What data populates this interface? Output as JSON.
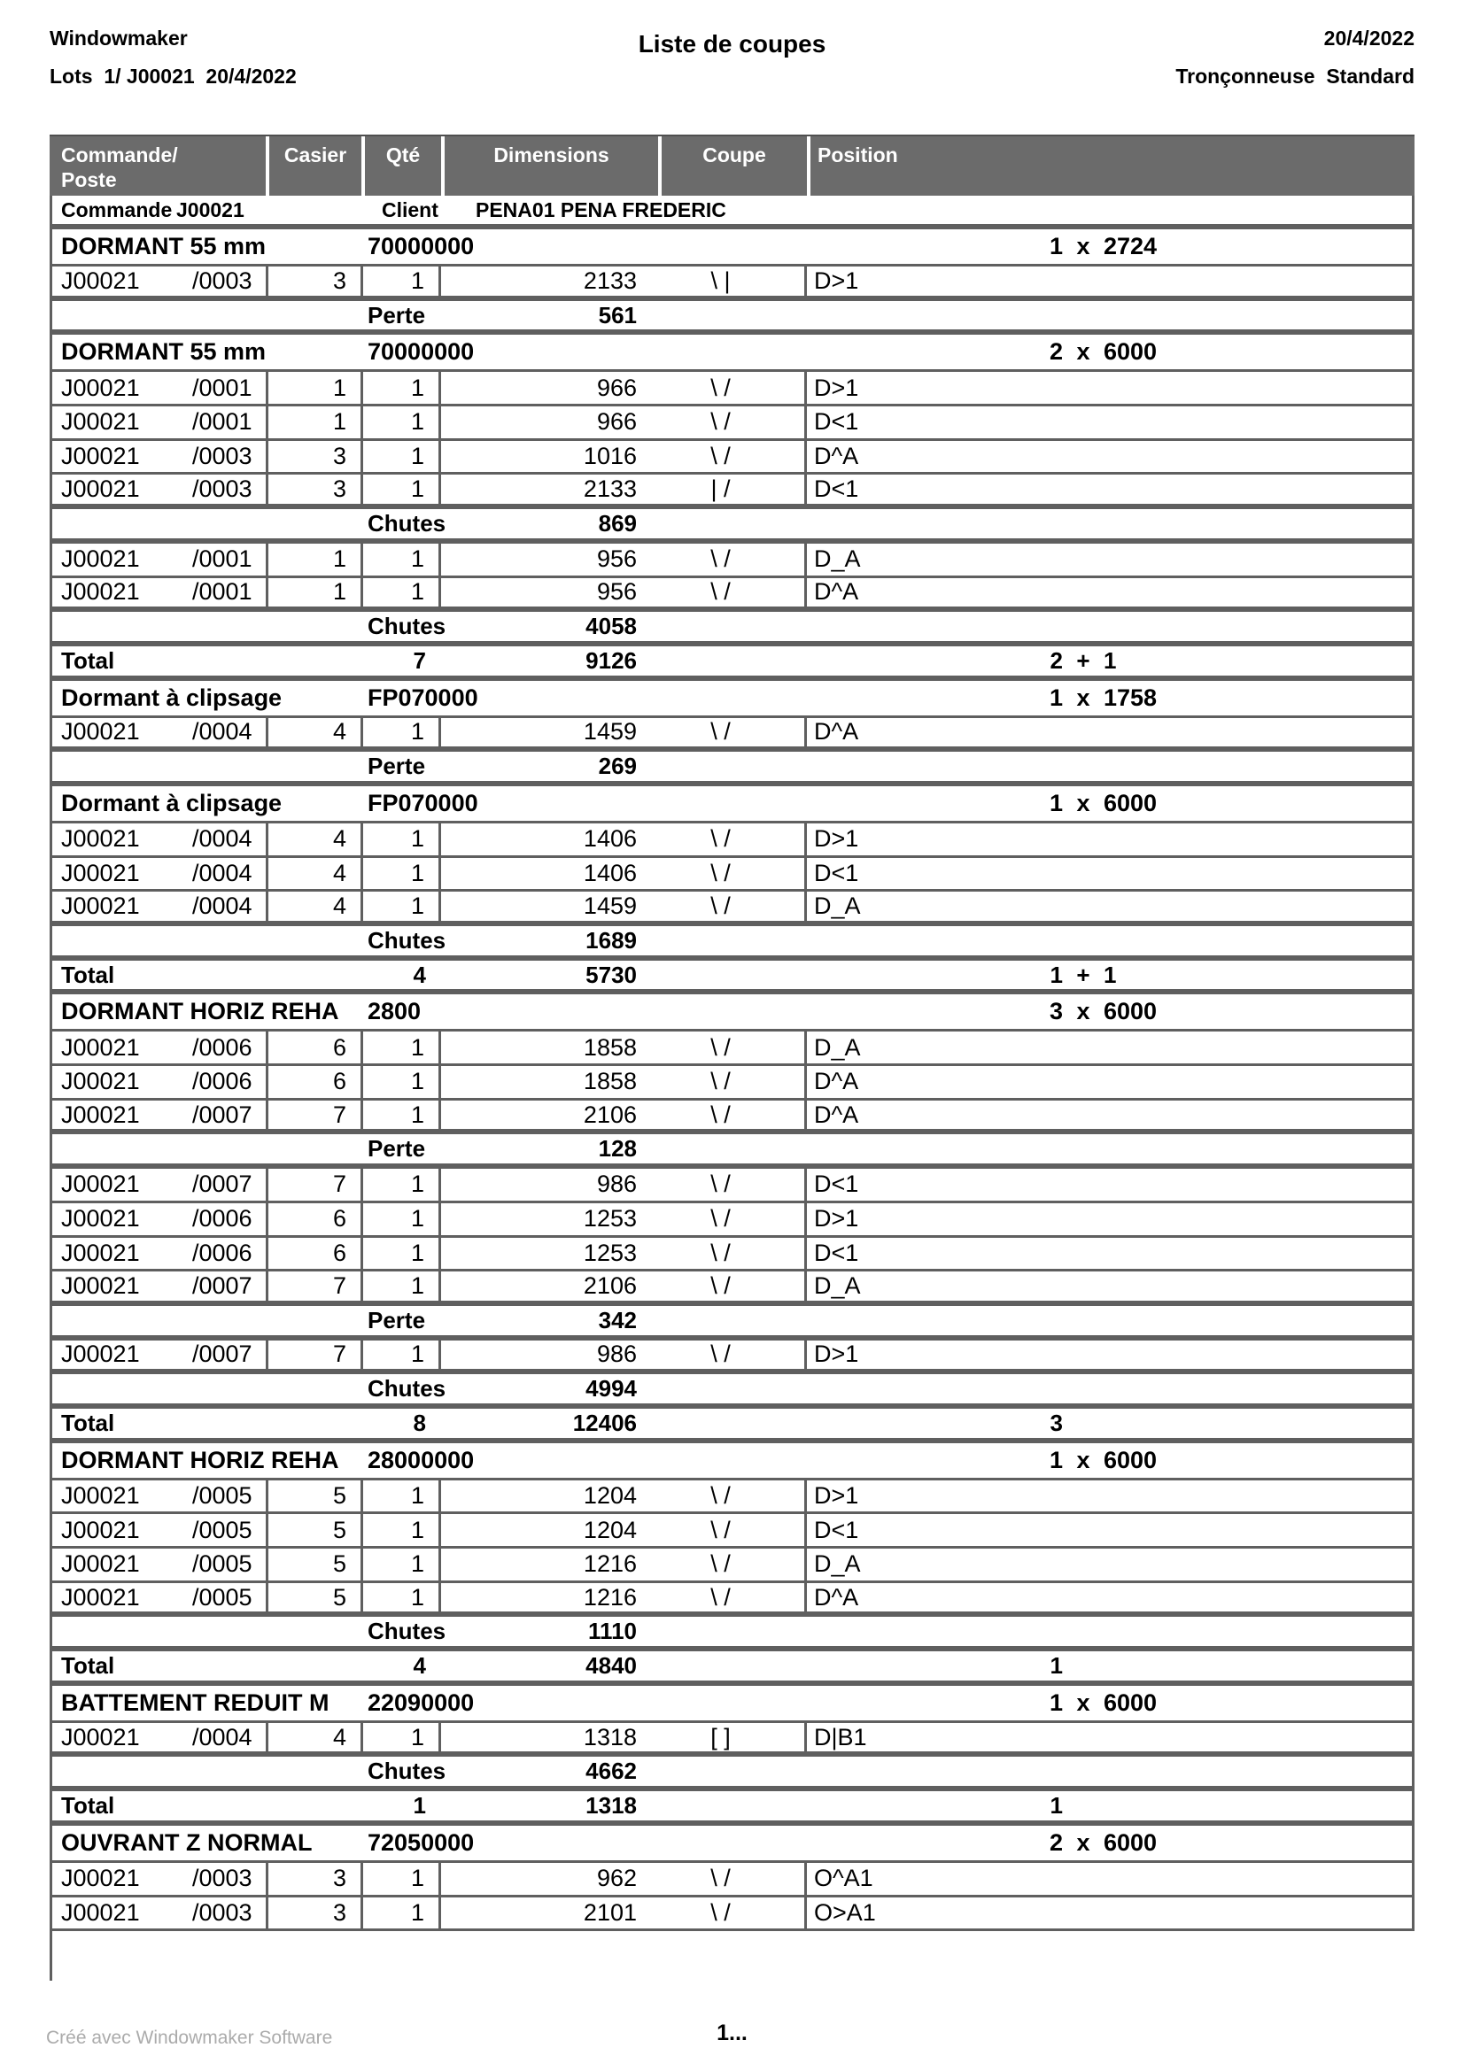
{
  "header": {
    "app_title": "Windowmaker",
    "lots_line": "Lots  1/ J00021  20/4/2022",
    "title": "Liste de coupes",
    "date": "20/4/2022",
    "machine": "Tronçonneuse  Standard"
  },
  "colors": {
    "header_bg": "#6b6b6b",
    "table_border": "#5f5f5f",
    "credit_gray": "#ababab"
  },
  "table": {
    "header": {
      "col0_line1": "Commande/",
      "col0_line2": "Poste",
      "col1": "Casier",
      "col2": "Qté",
      "col3": "Dimensions",
      "col4": "Coupe",
      "col5": "Position"
    },
    "rows": [
      {
        "type": "commande",
        "border": "thick",
        "label": "Commande",
        "order": "J00021",
        "client_label": "Client",
        "client": "PENA01 PENA FREDERIC"
      },
      {
        "type": "group",
        "border": "thin",
        "name": "DORMANT 55 mm",
        "code": "70000000",
        "bar_count": "1",
        "bar_sep": "x",
        "bar_len": "2724"
      },
      {
        "type": "data",
        "border": "thick",
        "order": "J00021",
        "poste": "/0003",
        "casier": "3",
        "qty": "1",
        "dim": "2133",
        "coupe": "\\ |",
        "position": "D>1"
      },
      {
        "type": "waste",
        "border": "thick",
        "label": "Perte",
        "value": "561"
      },
      {
        "type": "group",
        "border": "thin",
        "name": "DORMANT 55 mm",
        "code": "70000000",
        "bar_count": "2",
        "bar_sep": "x",
        "bar_len": "6000"
      },
      {
        "type": "data",
        "border": "thin",
        "order": "J00021",
        "poste": "/0001",
        "casier": "1",
        "qty": "1",
        "dim": "966",
        "coupe": "\\ /",
        "position": "D>1"
      },
      {
        "type": "data",
        "border": "thin",
        "order": "J00021",
        "poste": "/0001",
        "casier": "1",
        "qty": "1",
        "dim": "966",
        "coupe": "\\ /",
        "position": "D<1"
      },
      {
        "type": "data",
        "border": "thin",
        "order": "J00021",
        "poste": "/0003",
        "casier": "3",
        "qty": "1",
        "dim": "1016",
        "coupe": "\\ /",
        "position": "D^A"
      },
      {
        "type": "data",
        "border": "thick",
        "order": "J00021",
        "poste": "/0003",
        "casier": "3",
        "qty": "1",
        "dim": "2133",
        "coupe": "| /",
        "position": "D<1"
      },
      {
        "type": "waste",
        "border": "thick",
        "label": "Chutes",
        "value": "869"
      },
      {
        "type": "data",
        "border": "thin",
        "order": "J00021",
        "poste": "/0001",
        "casier": "1",
        "qty": "1",
        "dim": "956",
        "coupe": "\\ /",
        "position": "D_A"
      },
      {
        "type": "data",
        "border": "thick",
        "order": "J00021",
        "poste": "/0001",
        "casier": "1",
        "qty": "1",
        "dim": "956",
        "coupe": "\\ /",
        "position": "D^A"
      },
      {
        "type": "waste",
        "border": "thick",
        "label": "Chutes",
        "value": "4058"
      },
      {
        "type": "total",
        "border": "thick",
        "label": "Total",
        "qty": "7",
        "len": "9126",
        "bar_count": "2",
        "bar_sep": "+",
        "bar_len": "1"
      },
      {
        "type": "group",
        "border": "thin",
        "name": "Dormant à clipsage",
        "code": "FP070000",
        "bar_count": "1",
        "bar_sep": "x",
        "bar_len": "1758"
      },
      {
        "type": "data",
        "border": "thick",
        "order": "J00021",
        "poste": "/0004",
        "casier": "4",
        "qty": "1",
        "dim": "1459",
        "coupe": "\\ /",
        "position": "D^A"
      },
      {
        "type": "waste",
        "border": "thick",
        "label": "Perte",
        "value": "269"
      },
      {
        "type": "group",
        "border": "thin",
        "name": "Dormant à clipsage",
        "code": "FP070000",
        "bar_count": "1",
        "bar_sep": "x",
        "bar_len": "6000"
      },
      {
        "type": "data",
        "border": "thin",
        "order": "J00021",
        "poste": "/0004",
        "casier": "4",
        "qty": "1",
        "dim": "1406",
        "coupe": "\\ /",
        "position": "D>1"
      },
      {
        "type": "data",
        "border": "thin",
        "order": "J00021",
        "poste": "/0004",
        "casier": "4",
        "qty": "1",
        "dim": "1406",
        "coupe": "\\ /",
        "position": "D<1"
      },
      {
        "type": "data",
        "border": "thick",
        "order": "J00021",
        "poste": "/0004",
        "casier": "4",
        "qty": "1",
        "dim": "1459",
        "coupe": "\\ /",
        "position": "D_A"
      },
      {
        "type": "waste",
        "border": "thick",
        "label": "Chutes",
        "value": "1689"
      },
      {
        "type": "total",
        "border": "thick",
        "label": "Total",
        "qty": "4",
        "len": "5730",
        "bar_count": "1",
        "bar_sep": "+",
        "bar_len": "1"
      },
      {
        "type": "group",
        "border": "thin",
        "name": "DORMANT HORIZ REHA",
        "code": "2800",
        "bar_count": "3",
        "bar_sep": "x",
        "bar_len": "6000"
      },
      {
        "type": "data",
        "border": "thin",
        "order": "J00021",
        "poste": "/0006",
        "casier": "6",
        "qty": "1",
        "dim": "1858",
        "coupe": "\\ /",
        "position": "D_A"
      },
      {
        "type": "data",
        "border": "thin",
        "order": "J00021",
        "poste": "/0006",
        "casier": "6",
        "qty": "1",
        "dim": "1858",
        "coupe": "\\ /",
        "position": "D^A"
      },
      {
        "type": "data",
        "border": "thick",
        "order": "J00021",
        "poste": "/0007",
        "casier": "7",
        "qty": "1",
        "dim": "2106",
        "coupe": "\\ /",
        "position": "D^A"
      },
      {
        "type": "waste",
        "border": "thick",
        "label": "Perte",
        "value": "128"
      },
      {
        "type": "data",
        "border": "thin",
        "order": "J00021",
        "poste": "/0007",
        "casier": "7",
        "qty": "1",
        "dim": "986",
        "coupe": "\\ /",
        "position": "D<1"
      },
      {
        "type": "data",
        "border": "thin",
        "order": "J00021",
        "poste": "/0006",
        "casier": "6",
        "qty": "1",
        "dim": "1253",
        "coupe": "\\ /",
        "position": "D>1"
      },
      {
        "type": "data",
        "border": "thin",
        "order": "J00021",
        "poste": "/0006",
        "casier": "6",
        "qty": "1",
        "dim": "1253",
        "coupe": "\\ /",
        "position": "D<1"
      },
      {
        "type": "data",
        "border": "thick",
        "order": "J00021",
        "poste": "/0007",
        "casier": "7",
        "qty": "1",
        "dim": "2106",
        "coupe": "\\ /",
        "position": "D_A"
      },
      {
        "type": "waste",
        "border": "thick",
        "label": "Perte",
        "value": "342"
      },
      {
        "type": "data",
        "border": "thick",
        "order": "J00021",
        "poste": "/0007",
        "casier": "7",
        "qty": "1",
        "dim": "986",
        "coupe": "\\ /",
        "position": "D>1"
      },
      {
        "type": "waste",
        "border": "thick",
        "label": "Chutes",
        "value": "4994"
      },
      {
        "type": "total",
        "border": "thick",
        "label": "Total",
        "qty": "8",
        "len": "12406",
        "bar_count": "3",
        "bar_sep": "",
        "bar_len": ""
      },
      {
        "type": "group",
        "border": "thin",
        "name": "DORMANT HORIZ REHA",
        "code": "28000000",
        "bar_count": "1",
        "bar_sep": "x",
        "bar_len": "6000"
      },
      {
        "type": "data",
        "border": "thin",
        "order": "J00021",
        "poste": "/0005",
        "casier": "5",
        "qty": "1",
        "dim": "1204",
        "coupe": "\\ /",
        "position": "D>1"
      },
      {
        "type": "data",
        "border": "thin",
        "order": "J00021",
        "poste": "/0005",
        "casier": "5",
        "qty": "1",
        "dim": "1204",
        "coupe": "\\ /",
        "position": "D<1"
      },
      {
        "type": "data",
        "border": "thin",
        "order": "J00021",
        "poste": "/0005",
        "casier": "5",
        "qty": "1",
        "dim": "1216",
        "coupe": "\\ /",
        "position": "D_A"
      },
      {
        "type": "data",
        "border": "thick",
        "order": "J00021",
        "poste": "/0005",
        "casier": "5",
        "qty": "1",
        "dim": "1216",
        "coupe": "\\ /",
        "position": "D^A"
      },
      {
        "type": "waste",
        "border": "thick",
        "label": "Chutes",
        "value": "1110"
      },
      {
        "type": "total",
        "border": "thick",
        "label": "Total",
        "qty": "4",
        "len": "4840",
        "bar_count": "1",
        "bar_sep": "",
        "bar_len": ""
      },
      {
        "type": "group",
        "border": "thin",
        "name": "BATTEMENT REDUIT M",
        "code": "22090000",
        "bar_count": "1",
        "bar_sep": "x",
        "bar_len": "6000"
      },
      {
        "type": "data",
        "border": "thick",
        "order": "J00021",
        "poste": "/0004",
        "casier": "4",
        "qty": "1",
        "dim": "1318",
        "coupe": "[ ]",
        "position": "D|B1"
      },
      {
        "type": "waste",
        "border": "thick",
        "label": "Chutes",
        "value": "4662"
      },
      {
        "type": "total",
        "border": "thick",
        "label": "Total",
        "qty": "1",
        "len": "1318",
        "bar_count": "1",
        "bar_sep": "",
        "bar_len": ""
      },
      {
        "type": "group",
        "border": "thin",
        "name": "OUVRANT Z NORMAL",
        "code": "72050000",
        "bar_count": "2",
        "bar_sep": "x",
        "bar_len": "6000"
      },
      {
        "type": "data",
        "border": "thin",
        "order": "J00021",
        "poste": "/0003",
        "casier": "3",
        "qty": "1",
        "dim": "962",
        "coupe": "\\ /",
        "position": "O^A1"
      },
      {
        "type": "data",
        "border": "thin",
        "order": "J00021",
        "poste": "/0003",
        "casier": "3",
        "qty": "1",
        "dim": "2101",
        "coupe": "\\ /",
        "position": "O>A1"
      }
    ]
  },
  "footer": {
    "credit": "Créé avec Windowmaker Software",
    "page": "1..."
  }
}
